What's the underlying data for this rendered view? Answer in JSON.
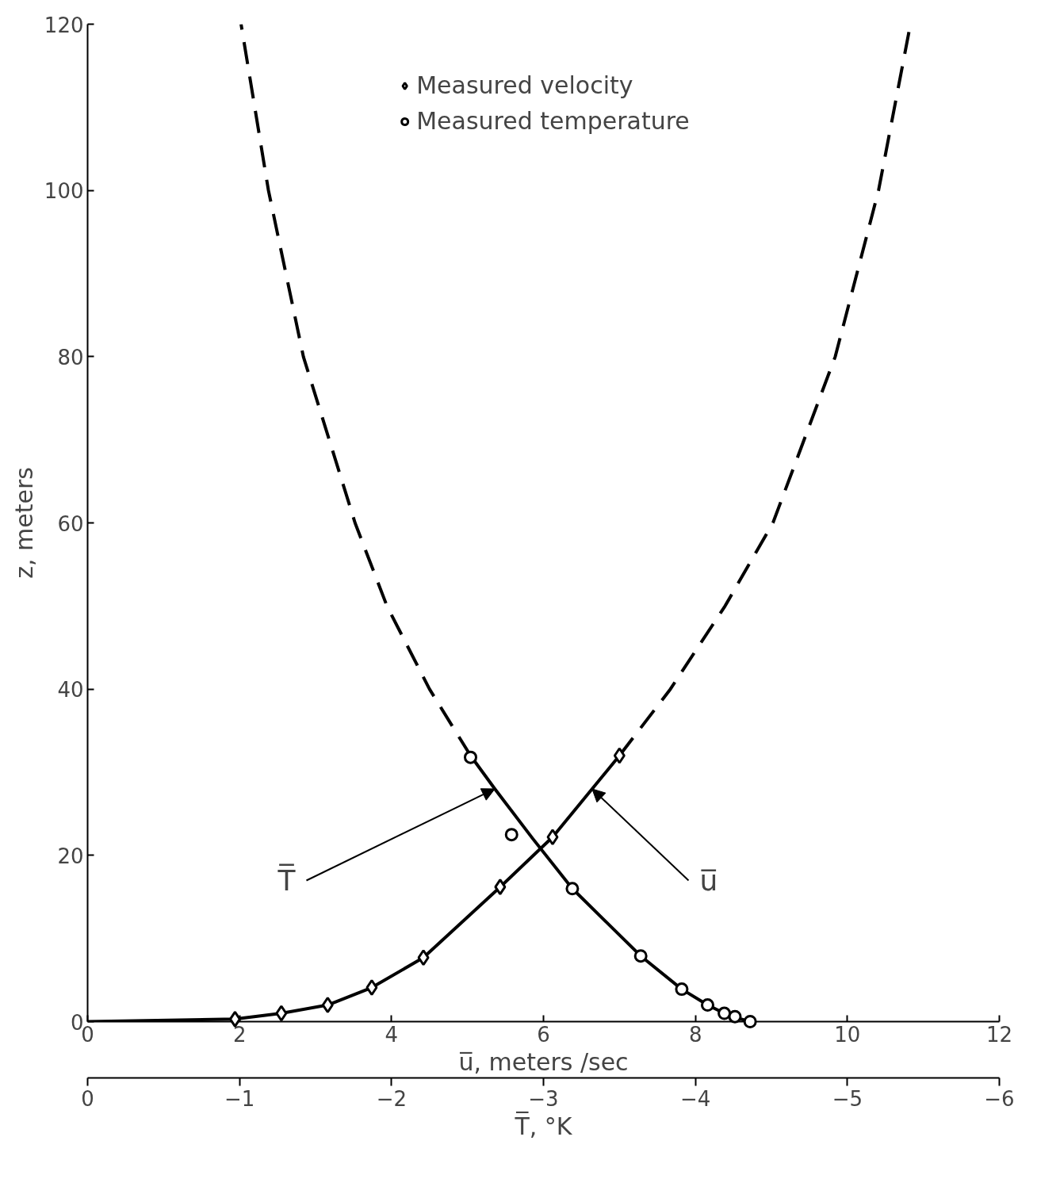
{
  "chart_data": {
    "type": "scatter",
    "xlabel": "u̅, meters /sec",
    "ylabel": "z, meters",
    "x2label": "T̅, °K",
    "xlim": [
      0,
      12
    ],
    "xticks": [
      0,
      2,
      4,
      6,
      8,
      10,
      12
    ],
    "x2lim": [
      0,
      -6
    ],
    "x2ticks": [
      0,
      -1,
      -2,
      -3,
      -4,
      -5,
      -6
    ],
    "ylim": [
      0,
      120
    ],
    "yticks": [
      0,
      20,
      40,
      60,
      80,
      100,
      120
    ],
    "grid": false,
    "legend": "top",
    "series": [
      {
        "name": "Measured velocity",
        "marker": "diamond",
        "color": "#000000",
        "x": [
          1.94,
          2.55,
          3.16,
          3.74,
          4.42,
          5.43,
          6.12,
          7.0
        ],
        "values": [
          0.3,
          1.0,
          2.0,
          4.1,
          7.7,
          16.2,
          22.2,
          32
        ]
      },
      {
        "name": "Measured temperature",
        "marker": "circle",
        "axis": "x2",
        "color": "#000000",
        "x": [
          -2.52,
          -2.79,
          -3.19,
          -3.64,
          -3.91,
          -4.08,
          -4.19,
          -4.26,
          -4.36
        ],
        "values": [
          31.8,
          22.5,
          16.0,
          7.9,
          3.9,
          2.0,
          1.0,
          0.6,
          0
        ]
      },
      {
        "type": "line",
        "line_style": "solid",
        "color": "#000000",
        "x": [
          0,
          1.94,
          2.55,
          3.16,
          3.74,
          4.42,
          5.43,
          6.12,
          7.0
        ],
        "values": [
          0,
          0.3,
          1.0,
          2.0,
          4.1,
          7.7,
          16.2,
          22.2,
          32
        ]
      },
      {
        "type": "line",
        "line_style": "dashed",
        "color": "#000000",
        "x": [
          7.0,
          7.67,
          8.39,
          9.02,
          9.84,
          10.41,
          10.83
        ],
        "values": [
          32,
          40,
          50,
          60,
          80,
          100,
          120
        ]
      },
      {
        "type": "line",
        "line_style": "solid",
        "axis": "x2",
        "color": "#000000",
        "x": [
          -2.52,
          -2.68,
          -2.93,
          -3.19,
          -3.64,
          -3.91,
          -4.08,
          -4.19,
          -4.26,
          -4.36
        ],
        "values": [
          32,
          28,
          22,
          16,
          7.9,
          3.9,
          2.0,
          1.0,
          0.5,
          0
        ]
      },
      {
        "type": "line",
        "line_style": "dashed",
        "axis": "x2",
        "color": "#000000",
        "x": [
          -2.52,
          -2.25,
          -1.97,
          -1.76,
          -1.42,
          -1.19,
          -1.01
        ],
        "values": [
          32,
          40,
          50,
          60,
          80,
          100,
          120
        ]
      }
    ],
    "annotations": [
      {
        "text": "T̅",
        "x": 5.36,
        "y": 28
      },
      {
        "text": "u̅",
        "x": 6.64,
        "y": 28
      }
    ]
  }
}
